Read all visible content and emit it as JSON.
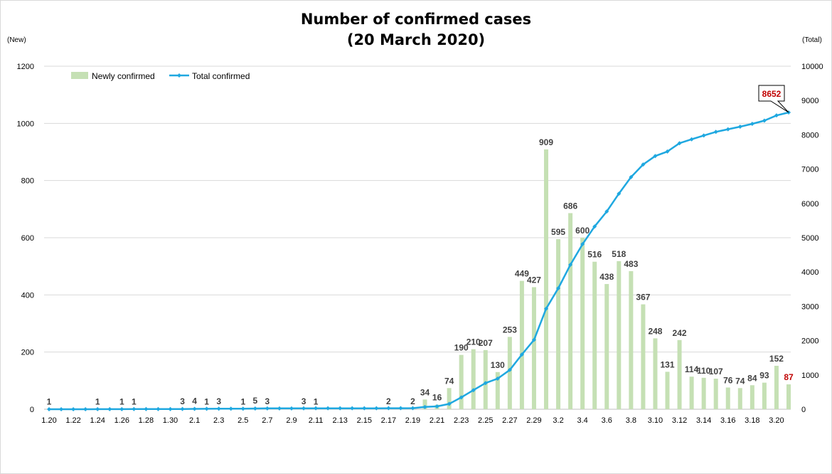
{
  "chart_data": {
    "type": "bar",
    "title": [
      "Number of confirmed cases",
      "(20 March 2020)"
    ],
    "y_left_unit": "(New)",
    "y_right_unit": "(Total)",
    "ylim_left": [
      0,
      1200
    ],
    "ylim_right": [
      0,
      10000
    ],
    "y_left_ticks": [
      "0",
      "200",
      "400",
      "600",
      "800",
      "1000",
      "1200"
    ],
    "y_right_ticks": [
      "0",
      "1000",
      "2000",
      "3000",
      "4000",
      "5000",
      "6000",
      "7000",
      "8000",
      "9000",
      "10000"
    ],
    "x_tick_labels": [
      "1.20",
      "1.22",
      "1.24",
      "1.26",
      "1.28",
      "1.30",
      "2.1",
      "2.3",
      "2.5",
      "2.7",
      "2.9",
      "2.11",
      "2.13",
      "2.15",
      "2.17",
      "2.19",
      "2.21",
      "2.23",
      "2.25",
      "2.27",
      "2.29",
      "3.2",
      "3.4",
      "3.6",
      "3.8",
      "3.10",
      "3.12",
      "3.14",
      "3.16",
      "3.18",
      "3.20"
    ],
    "legend": [
      "Newly confirmed",
      "Total confirmed"
    ],
    "legend_position": "top-left",
    "colors": {
      "bar": "#c5e0b4",
      "line": "#1fa8e0",
      "highlight": "#c00000",
      "grid": "#d9d9d9"
    },
    "grid": true,
    "series": [
      {
        "name": "Newly confirmed",
        "type": "bar",
        "values": [
          1,
          0,
          0,
          0,
          1,
          0,
          1,
          1,
          0,
          0,
          0,
          3,
          4,
          1,
          3,
          0,
          1,
          5,
          3,
          0,
          0,
          3,
          1,
          0,
          0,
          0,
          0,
          0,
          2,
          0,
          2,
          34,
          16,
          74,
          190,
          210,
          207,
          130,
          253,
          449,
          427,
          909,
          595,
          686,
          600,
          516,
          438,
          518,
          483,
          367,
          248,
          131,
          242,
          114,
          110,
          107,
          76,
          74,
          84,
          93,
          152,
          87
        ]
      },
      {
        "name": "Total confirmed",
        "type": "line",
        "axis": "right",
        "values": [
          1,
          1,
          1,
          1,
          2,
          2,
          3,
          4,
          4,
          4,
          4,
          7,
          11,
          12,
          15,
          15,
          16,
          21,
          24,
          24,
          24,
          27,
          28,
          28,
          28,
          28,
          28,
          28,
          30,
          30,
          32,
          66,
          82,
          156,
          346,
          556,
          763,
          893,
          1146,
          1595,
          2022,
          2931,
          3526,
          4212,
          4812,
          5328,
          5766,
          6284,
          6767,
          7134,
          7382,
          7513,
          7755,
          7869,
          7979,
          8086,
          8162,
          8236,
          8320,
          8413,
          8565,
          8652
        ]
      }
    ],
    "annotations": [
      {
        "label": "8652",
        "target": "last-total-point"
      }
    ]
  }
}
